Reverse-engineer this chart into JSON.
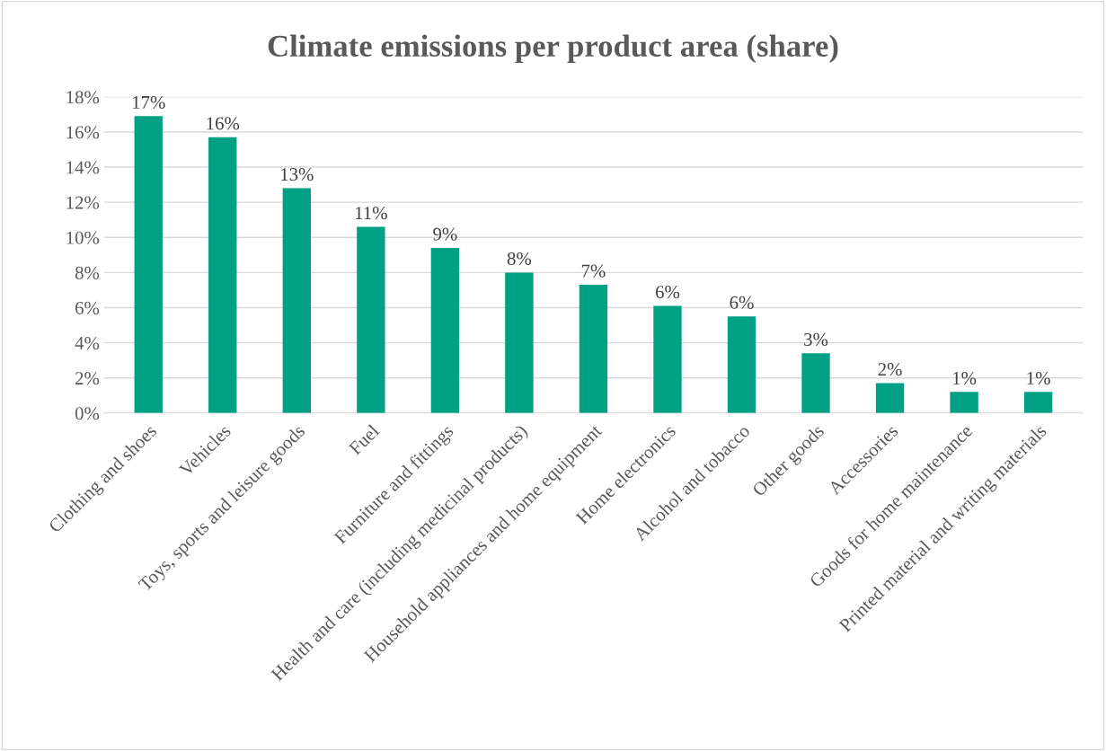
{
  "chart_data": {
    "type": "bar",
    "title": "Climate emissions per product area (share)",
    "categories": [
      "Clothing and shoes",
      "Vehicles",
      "Toys, sports and leisure goods",
      "Fuel",
      "Furniture and fittings",
      "Health and care (including medicinal products)",
      "Household appliances and home equipment",
      "Home electronics",
      "Alcohol and tobacco",
      "Other goods",
      "Accessories",
      "Goods for home maintenance",
      "Printed material and writing materials"
    ],
    "values": [
      16.9,
      15.7,
      12.8,
      10.6,
      9.4,
      8.0,
      7.3,
      6.1,
      5.5,
      3.4,
      1.7,
      1.2,
      1.2
    ],
    "value_labels": [
      "17%",
      "16%",
      "13%",
      "11%",
      "9%",
      "8%",
      "7%",
      "6%",
      "6%",
      "3%",
      "2%",
      "1%",
      "1%"
    ],
    "color": "#00a084",
    "ylim": [
      0,
      18
    ],
    "yticks": [
      {
        "value": 0,
        "label": "0%"
      },
      {
        "value": 2,
        "label": "2%"
      },
      {
        "value": 4,
        "label": "4%"
      },
      {
        "value": 6,
        "label": "6%"
      },
      {
        "value": 8,
        "label": "8%"
      },
      {
        "value": 10,
        "label": "10%"
      },
      {
        "value": 12,
        "label": "12%"
      },
      {
        "value": 14,
        "label": "14%"
      },
      {
        "value": 16,
        "label": "16%"
      },
      {
        "value": 18,
        "label": "18%"
      }
    ],
    "grid": "y",
    "legend": false
  }
}
